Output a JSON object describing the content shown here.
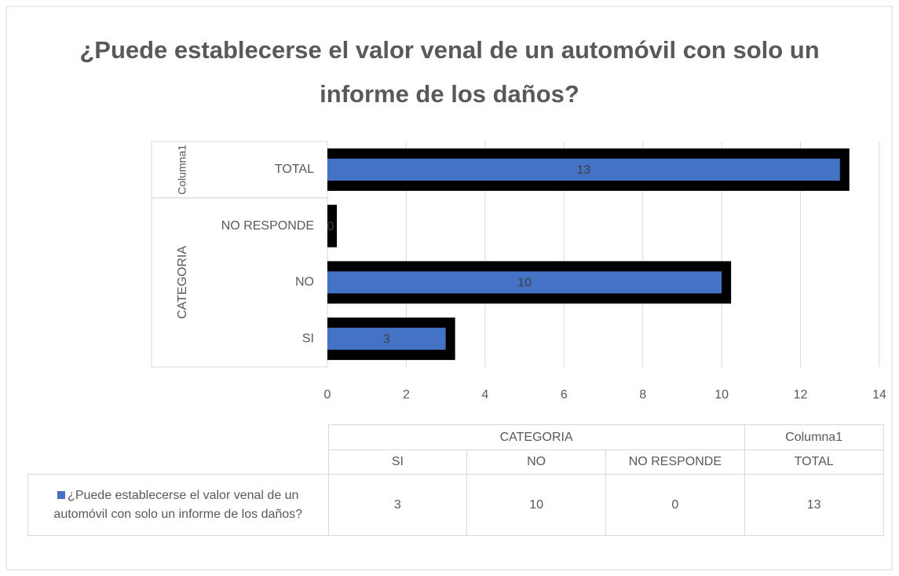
{
  "chart_data": {
    "type": "barh",
    "title": "¿Puede establecerse el valor venal de un automóvil con solo un informe de los daños?",
    "category_groups": [
      {
        "label": "CATEGORIA",
        "categories": [
          "SI",
          "NO",
          "NO RESPONDE"
        ]
      },
      {
        "label": "Columna1",
        "categories": [
          "TOTAL"
        ]
      }
    ],
    "series": [
      {
        "name": "¿Puede establecerse el valor venal de un automóvil con solo un informe de los daños?",
        "color": "#4472c4",
        "values": [
          3,
          10,
          0,
          13
        ]
      }
    ],
    "xlim": [
      0,
      14
    ],
    "xticks": [
      0,
      2,
      4,
      6,
      8,
      10,
      12,
      14
    ],
    "grid": true,
    "data_table": true
  }
}
